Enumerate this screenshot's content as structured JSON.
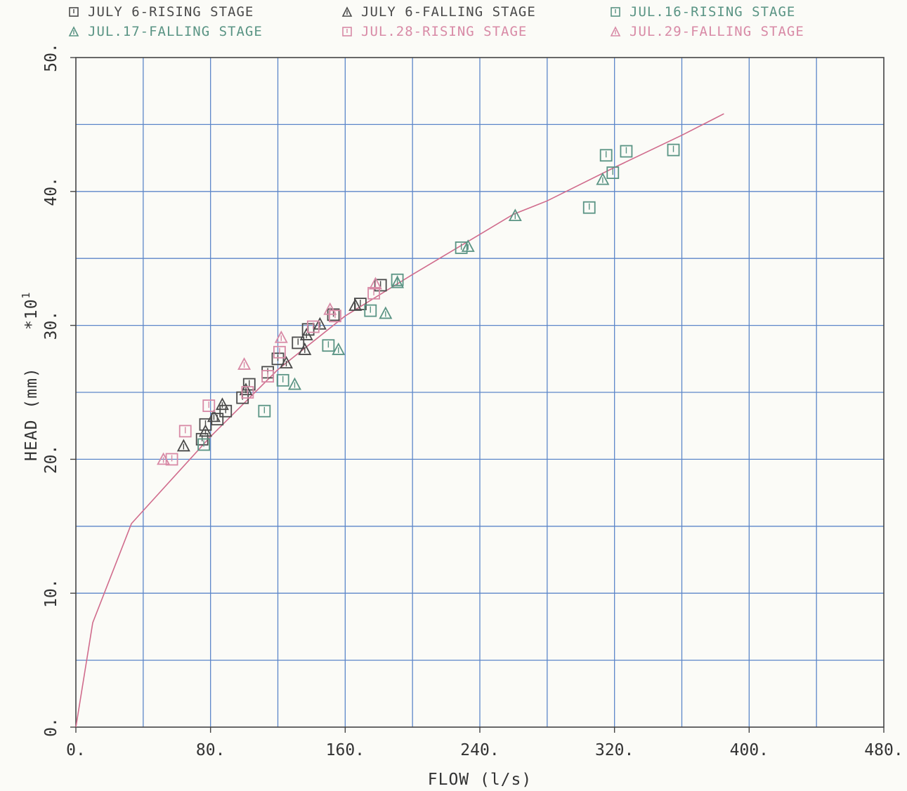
{
  "chart_data": {
    "type": "scatter",
    "xlabel": "FLOW  (l/s)",
    "ylabel": "HEAD  (mm)",
    "y_multiplier": "*10",
    "y_multiplier_exp": "1",
    "xlim": [
      0,
      480
    ],
    "ylim": [
      0,
      50
    ],
    "x_ticks": [
      0,
      80,
      160,
      240,
      320,
      400,
      480
    ],
    "x_tick_labels": [
      "0.",
      "80.",
      "160.",
      "240.",
      "320.",
      "400.",
      "480."
    ],
    "y_ticks": [
      0,
      10,
      20,
      30,
      40,
      50
    ],
    "y_tick_labels": [
      "0.",
      "10.",
      "20.",
      "30.",
      "40.",
      "50."
    ],
    "grid": true,
    "legend_position": "top",
    "series": [
      {
        "name": "JULY 6-RISING STAGE",
        "marker": "square",
        "color": "#4a4a4a",
        "points": [
          [
            75,
            21.5
          ],
          [
            77,
            22.6
          ],
          [
            84,
            23.0
          ],
          [
            89,
            23.6
          ],
          [
            99,
            24.6
          ],
          [
            103,
            25.6
          ],
          [
            114,
            26.5
          ],
          [
            120,
            27.5
          ],
          [
            132,
            28.7
          ],
          [
            138,
            29.7
          ],
          [
            153,
            30.8
          ],
          [
            169,
            31.6
          ],
          [
            181,
            33.0
          ]
        ]
      },
      {
        "name": "JULY 6-FALLING STAGE",
        "marker": "triangle",
        "color": "#4a4a4a",
        "points": [
          [
            64,
            21.0
          ],
          [
            77,
            22.1
          ],
          [
            82,
            23.2
          ],
          [
            87,
            24.1
          ],
          [
            101,
            25.2
          ],
          [
            125,
            27.2
          ],
          [
            136,
            28.2
          ],
          [
            137,
            29.3
          ],
          [
            145,
            30.1
          ],
          [
            166,
            31.5
          ]
        ]
      },
      {
        "name": "JUL.16-RISING STAGE",
        "marker": "square",
        "color": "#5a9484",
        "points": [
          [
            76,
            21.1
          ],
          [
            112,
            23.6
          ],
          [
            123,
            25.9
          ],
          [
            150,
            28.5
          ],
          [
            175,
            31.1
          ],
          [
            191,
            33.4
          ],
          [
            229,
            35.8
          ],
          [
            305,
            38.8
          ],
          [
            315,
            42.7
          ],
          [
            319,
            41.4
          ],
          [
            327,
            43.0
          ],
          [
            355,
            43.1
          ]
        ]
      },
      {
        "name": "JUL.17-FALLING STAGE",
        "marker": "triangle",
        "color": "#5a9484",
        "points": [
          [
            130,
            25.6
          ],
          [
            156,
            28.2
          ],
          [
            184,
            30.9
          ],
          [
            191,
            33.2
          ],
          [
            233,
            35.9
          ],
          [
            261,
            38.2
          ],
          [
            313,
            40.9
          ]
        ]
      },
      {
        "name": "JUL.28-RISING STAGE",
        "marker": "square",
        "color": "#d88aa6",
        "points": [
          [
            57,
            20.0
          ],
          [
            65,
            22.1
          ],
          [
            79,
            24.0
          ],
          [
            102,
            25.0
          ],
          [
            114,
            26.2
          ],
          [
            121,
            28.0
          ],
          [
            141,
            29.9
          ],
          [
            154,
            30.7
          ],
          [
            177,
            32.4
          ]
        ]
      },
      {
        "name": "JUL.29-FALLING STAGE",
        "marker": "triangle",
        "color": "#d88aa6",
        "points": [
          [
            52,
            20.0
          ],
          [
            100,
            27.1
          ],
          [
            122,
            29.1
          ],
          [
            151,
            31.2
          ],
          [
            178,
            33.1
          ]
        ]
      }
    ],
    "fitted_curve": {
      "color": "#d06b8c",
      "x": [
        0,
        10,
        33,
        80,
        120,
        160,
        200,
        240,
        260,
        280,
        320,
        360,
        385
      ],
      "y": [
        0,
        7.8,
        15.2,
        21.7,
        26.7,
        30.7,
        33.8,
        36.8,
        38.3,
        39.3,
        41.8,
        44.2,
        45.8
      ]
    },
    "colors": {
      "grid": "#5c86c9",
      "axis": "#444444",
      "background": "#fbfbf7"
    }
  }
}
